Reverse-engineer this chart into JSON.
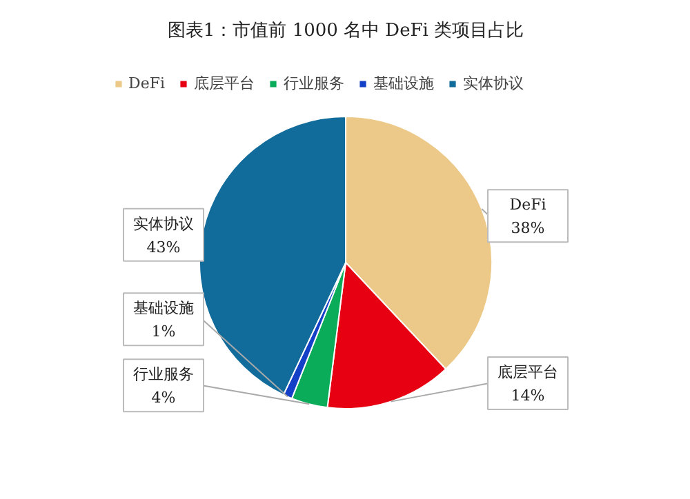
{
  "chart_data": {
    "type": "pie",
    "title": "图表1：市值前 1000 名中 DeFi 类项目占比",
    "categories": [
      "DeFi",
      "底层平台",
      "行业服务",
      "基础设施",
      "实体协议"
    ],
    "values": [
      38,
      14,
      4,
      1,
      43
    ],
    "colors": [
      "#ecc988",
      "#e60012",
      "#0aac5a",
      "#1440c8",
      "#116b9b"
    ],
    "value_labels": [
      "38%",
      "14%",
      "4%",
      "1%",
      "43%"
    ],
    "legend": "top"
  }
}
